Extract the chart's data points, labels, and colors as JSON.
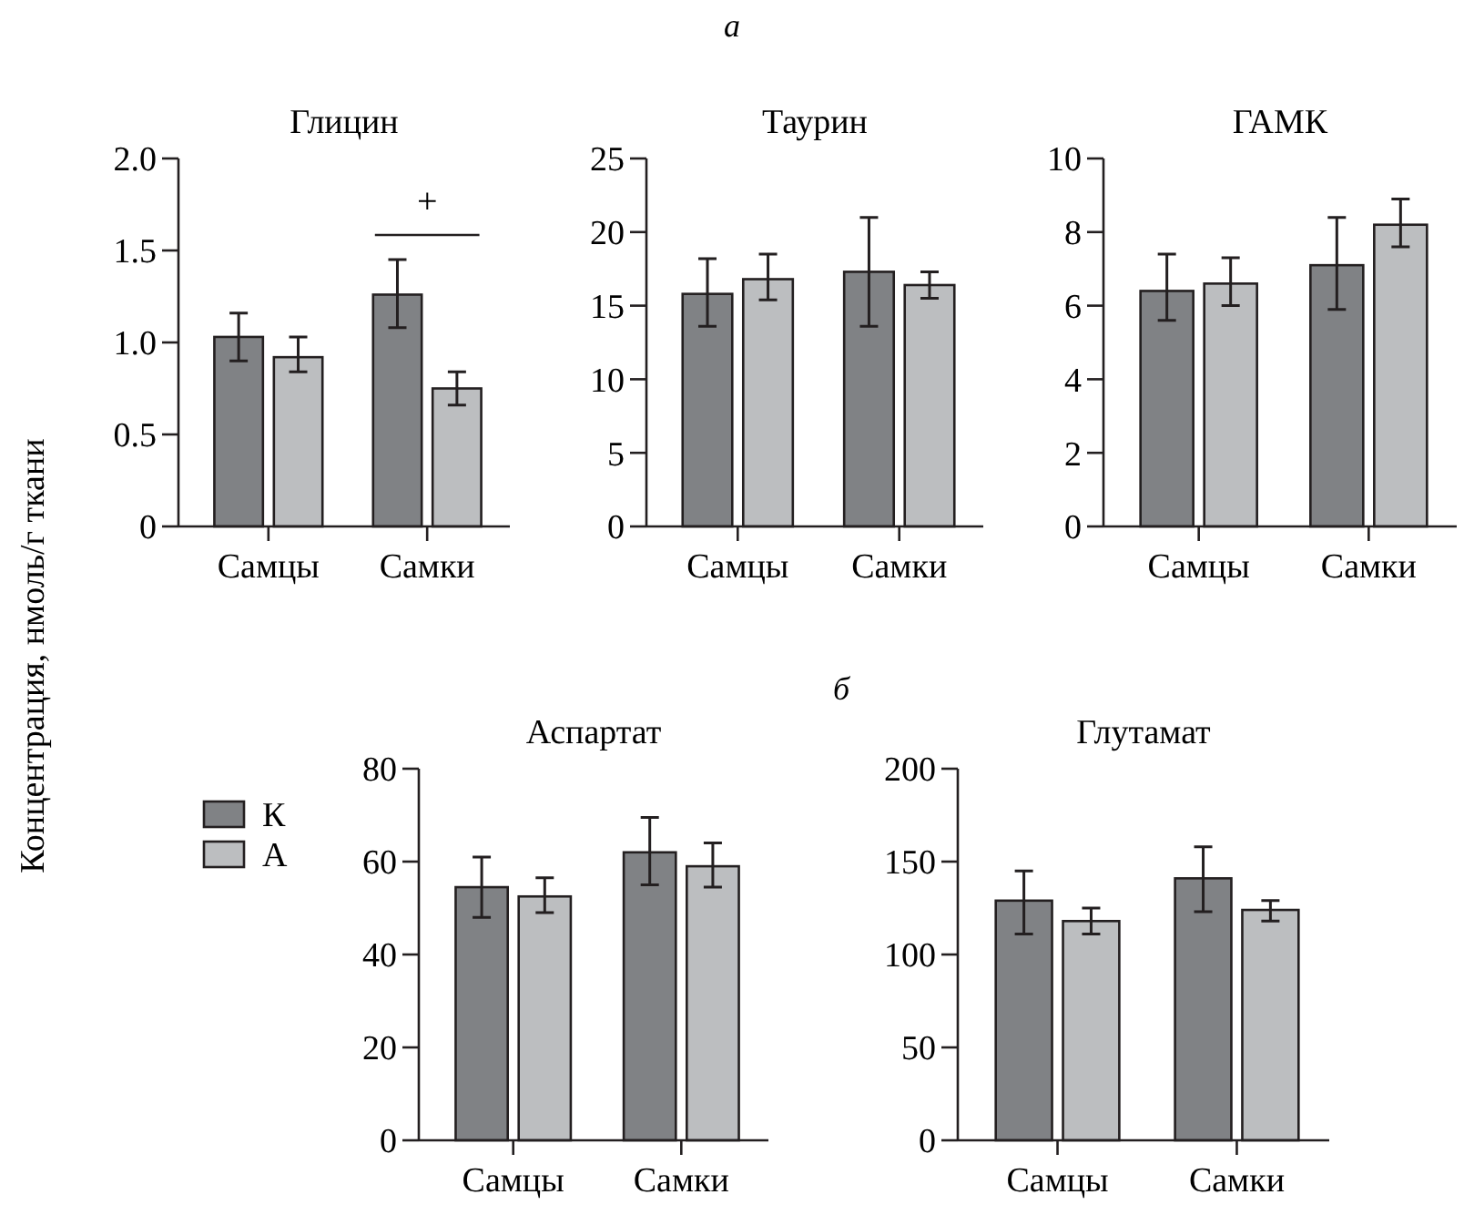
{
  "chart_data": [
    {
      "type": "bar",
      "title": "Глицин",
      "ylabel": "Концентрация, нмоль/г ткани",
      "categories": [
        "Самцы",
        "Самки"
      ],
      "ylim": [
        0,
        2
      ],
      "yticks": [
        0,
        {
          "value": 0.5,
          "label": "0.5"
        },
        {
          "value": 1,
          "label": "1.0"
        },
        {
          "value": 1.5,
          "label": "1.5"
        },
        {
          "value": 2,
          "label": "2.0"
        }
      ],
      "grid": false,
      "legend": false,
      "series": [
        {
          "color": "#808285",
          "values": [
            1.03,
            1.26
          ],
          "errors": [
            [
              0.9,
              1.16
            ],
            [
              1.08,
              1.45
            ]
          ]
        },
        {
          "color": "#bcbec0",
          "values": [
            0.92,
            0.75
          ],
          "errors": [
            [
              0.84,
              1.03
            ],
            [
              0.66,
              0.84
            ]
          ]
        }
      ],
      "annotations": [
        "а",
        "+"
      ]
    },
    {
      "type": "bar",
      "title": "Таурин",
      "categories": [
        "Самцы",
        "Самки"
      ],
      "ylim": [
        0,
        25
      ],
      "yticks": [
        0,
        5,
        10,
        15,
        20,
        25
      ],
      "grid": false,
      "legend": false,
      "series": [
        {
          "color": "#808285",
          "values": [
            15.8,
            17.3
          ],
          "errors": [
            [
              13.6,
              18.2
            ],
            [
              13.6,
              21
            ]
          ]
        },
        {
          "color": "#bcbec0",
          "values": [
            16.8,
            16.4
          ],
          "errors": [
            [
              15.4,
              18.5
            ],
            [
              15.5,
              17.3
            ]
          ]
        }
      ]
    },
    {
      "type": "bar",
      "title": "ГАМК",
      "categories": [
        "Самцы",
        "Самки"
      ],
      "ylim": [
        0,
        10
      ],
      "yticks": [
        0,
        2,
        4,
        6,
        8,
        10
      ],
      "grid": false,
      "legend": false,
      "series": [
        {
          "color": "#808285",
          "values": [
            6.4,
            7.1
          ],
          "errors": [
            [
              5.6,
              7.4
            ],
            [
              5.9,
              8.4
            ]
          ]
        },
        {
          "color": "#bcbec0",
          "values": [
            6.6,
            8.2
          ],
          "errors": [
            [
              6,
              7.3
            ],
            [
              7.6,
              8.9
            ]
          ]
        }
      ]
    },
    {
      "type": "bar",
      "title": "Аспартат",
      "categories": [
        "Самцы",
        "Самки"
      ],
      "ylim": [
        0,
        80
      ],
      "yticks": [
        0,
        20,
        40,
        60,
        80
      ],
      "grid": false,
      "legend": "left",
      "series": [
        {
          "name": "К",
          "color": "#808285",
          "values": [
            54.5,
            62
          ],
          "errors": [
            [
              48,
              61
            ],
            [
              55,
              69.5
            ]
          ]
        },
        {
          "name": "А",
          "color": "#bcbec0",
          "values": [
            52.5,
            59
          ],
          "errors": [
            [
              49,
              56.5
            ],
            [
              54.5,
              64
            ]
          ]
        }
      ],
      "annotations": [
        "б"
      ]
    },
    {
      "type": "bar",
      "title": "Глутамат",
      "categories": [
        "Самцы",
        "Самки"
      ],
      "ylim": [
        0,
        200
      ],
      "yticks": [
        0,
        50,
        100,
        150,
        200
      ],
      "grid": false,
      "legend": false,
      "series": [
        {
          "color": "#808285",
          "values": [
            129,
            141
          ],
          "errors": [
            [
              111,
              145
            ],
            [
              123,
              158
            ]
          ]
        },
        {
          "color": "#bcbec0",
          "values": [
            118,
            124
          ],
          "errors": [
            [
              111,
              125
            ],
            [
              118,
              129
            ]
          ]
        }
      ]
    }
  ]
}
